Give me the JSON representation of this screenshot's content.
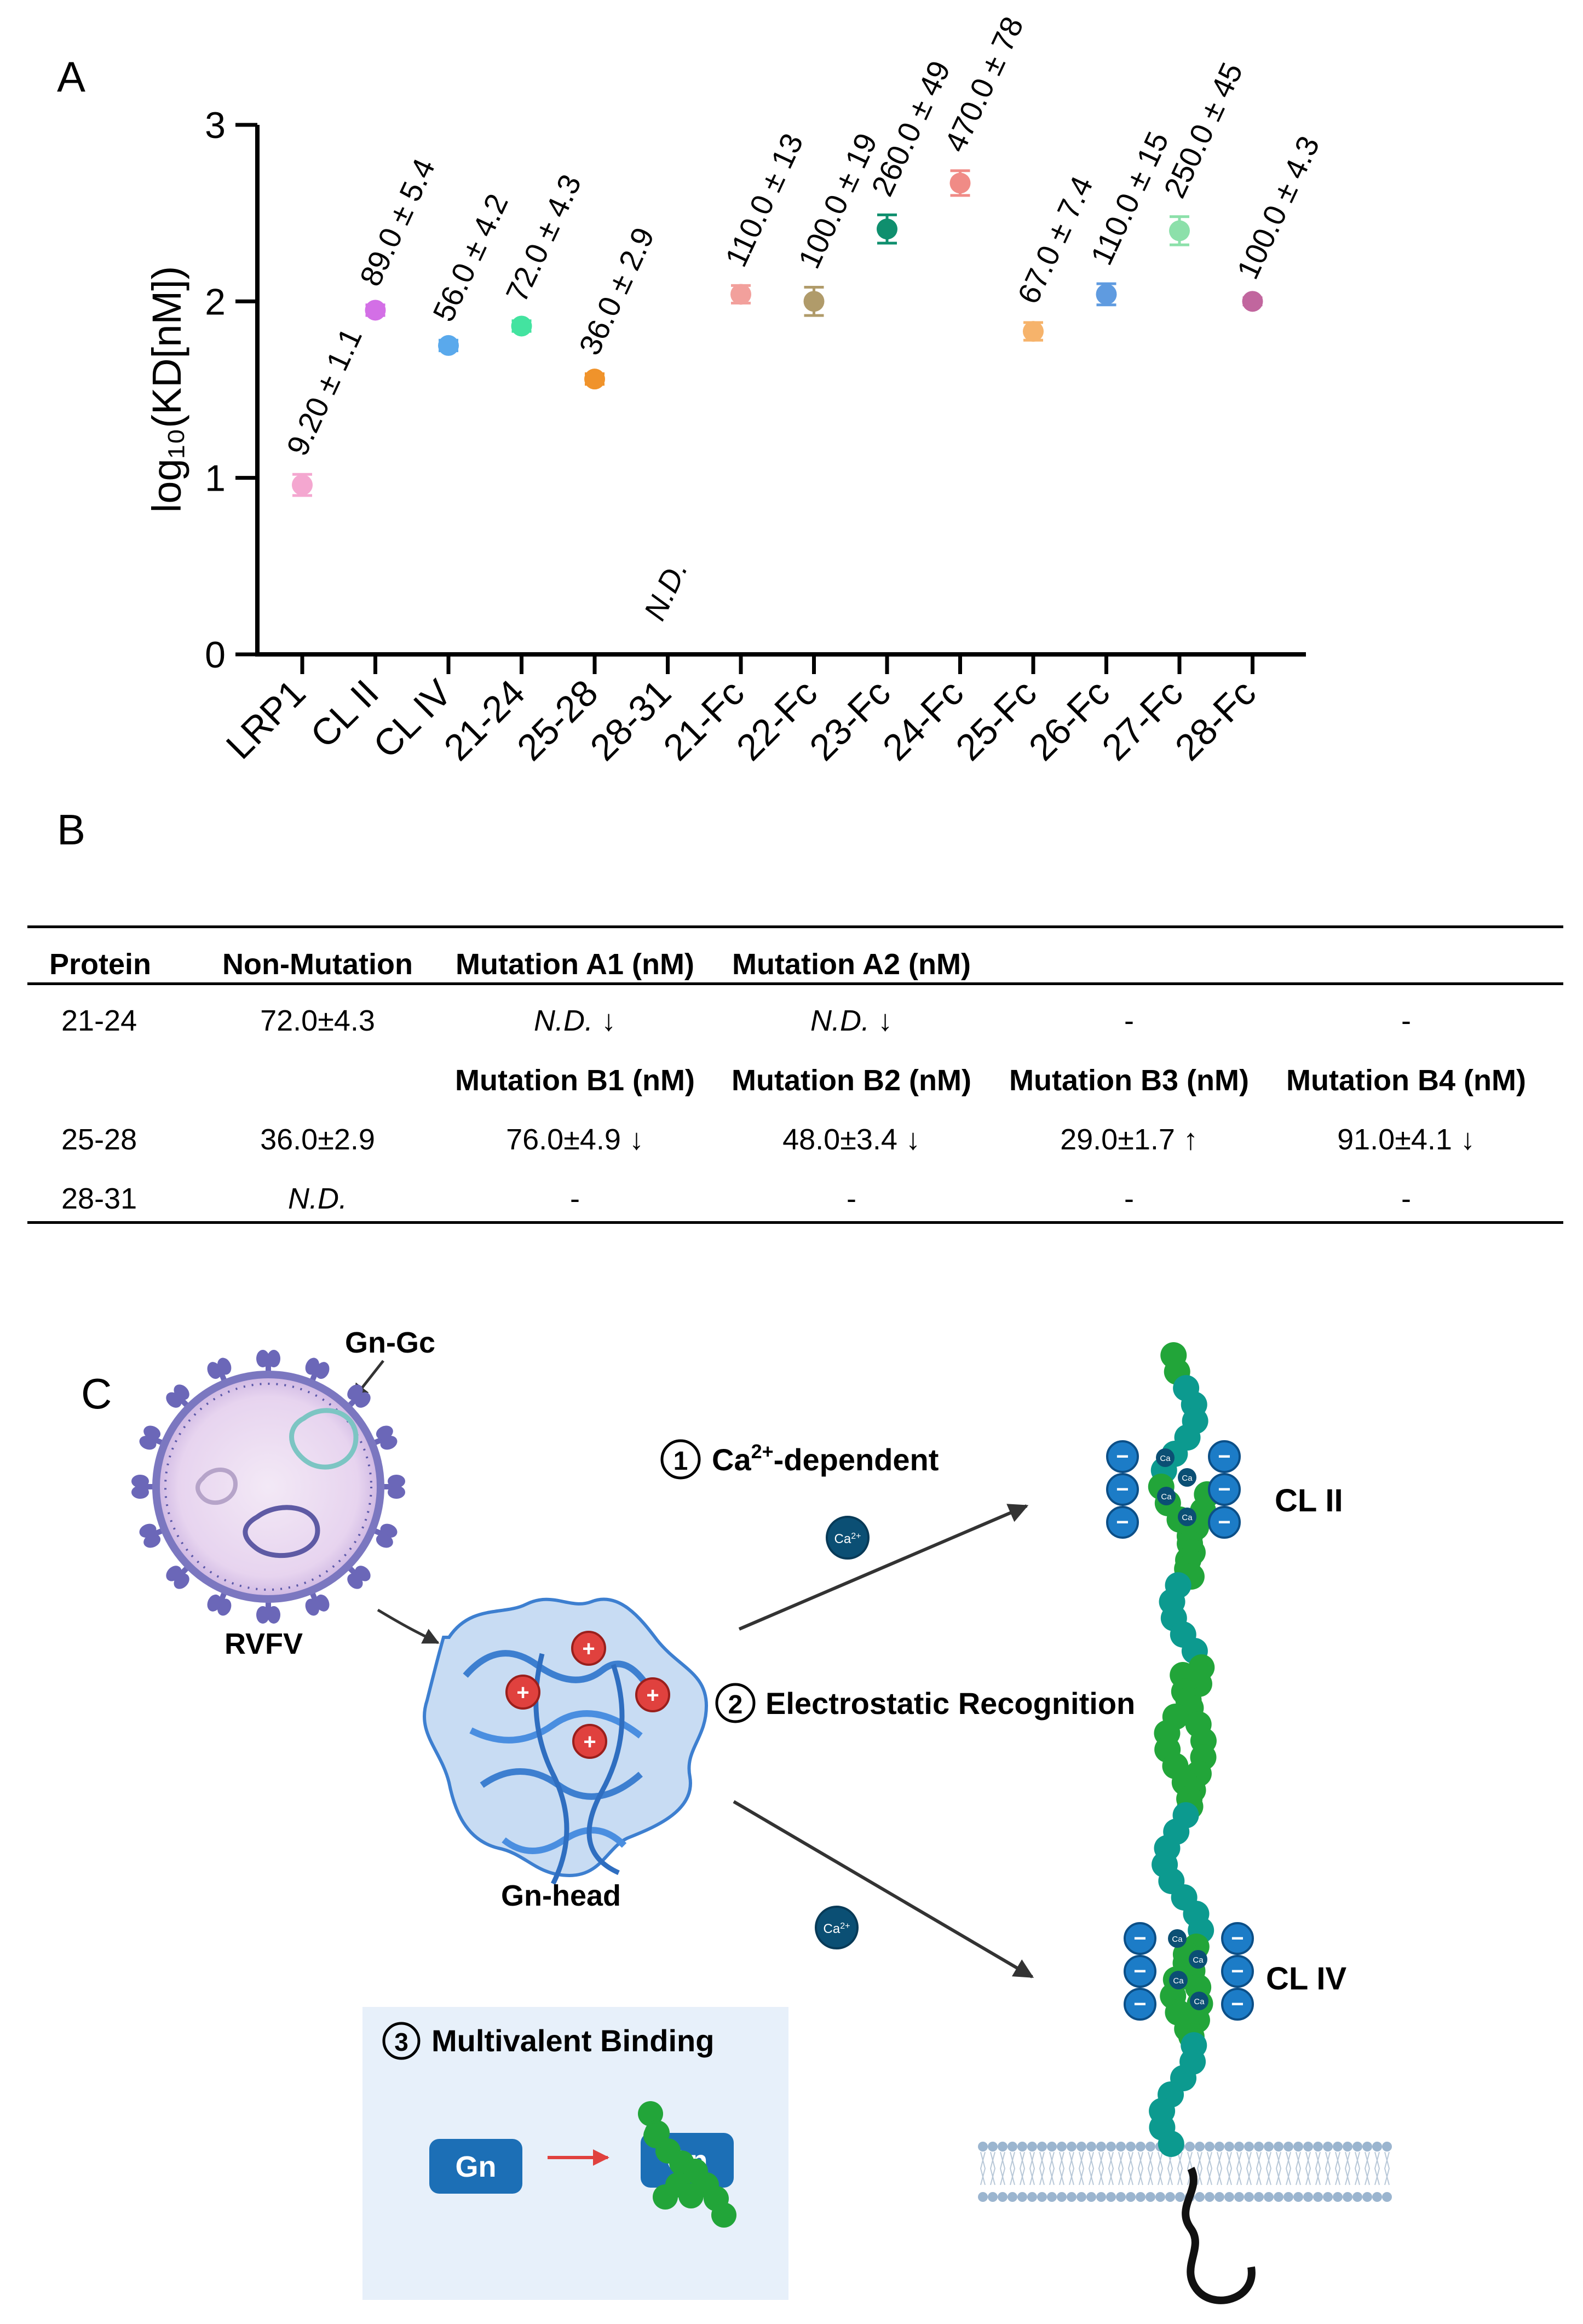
{
  "panels": {
    "a": "A",
    "b": "B",
    "c": "C"
  },
  "colors": {
    "axis": "#000000",
    "points": [
      "#f4a7d0",
      "#d36fe6",
      "#5aa9ec",
      "#43e3a0",
      "#f0932b",
      "#000000",
      "#f2a09c",
      "#b09b6a",
      "#0f8f6e",
      "#f08b86",
      "#f6b36b",
      "#5f9be0",
      "#8ce0aa",
      "#c1669e"
    ],
    "green": "#22a539",
    "teal": "#0c9a8f",
    "minus": "#1c7cc7",
    "plus": "#e0413e",
    "ca": "#0b4f74",
    "gn": "#1c6fb6",
    "virus": "#8a86c8"
  },
  "chart_data": {
    "type": "scatter",
    "title": "",
    "xlabel": "",
    "ylabel": "log₁₀(KD[nM])",
    "ylim": [
      0,
      3
    ],
    "yticks": [
      "0",
      "1",
      "2",
      "3"
    ],
    "categories": [
      "LRP1",
      "CL II",
      "CL IV",
      "21-24",
      "25-28",
      "28-31",
      "21-Fc",
      "22-Fc",
      "23-Fc",
      "24-Fc",
      "25-Fc",
      "26-Fc",
      "27-Fc",
      "28-Fc"
    ],
    "kd_nM": [
      9.2,
      89.0,
      56.0,
      72.0,
      36.0,
      null,
      110.0,
      100.0,
      260.0,
      470.0,
      67.0,
      110.0,
      250.0,
      100.0
    ],
    "values": [
      0.96,
      1.95,
      1.75,
      1.86,
      1.56,
      null,
      2.04,
      2.0,
      2.41,
      2.67,
      1.83,
      2.04,
      2.4,
      2.0
    ],
    "err": [
      0.06,
      0.03,
      0.03,
      0.03,
      0.03,
      null,
      0.05,
      0.08,
      0.08,
      0.07,
      0.05,
      0.06,
      0.08,
      0.02
    ],
    "labels": [
      "9.20 ± 1.1",
      "89.0 ± 5.4",
      "56.0 ± 4.2",
      "72.0 ± 4.3",
      "36.0 ± 2.9",
      "N.D.",
      "110.0 ± 13",
      "100.0 ± 19",
      "260.0 ± 49",
      "470.0 ± 78",
      "67.0 ± 7.4",
      "110.0 ± 15",
      "250.0 ± 45",
      "100.0 ± 4.3"
    ]
  },
  "table": {
    "headers": [
      "Protein",
      "Non-Mutation",
      "Mutation  A1 (nM)",
      "Mutation  A2 (nM)"
    ],
    "row1": [
      "21-24",
      "72.0±4.3",
      "N.D. ↓",
      "N.D. ↓",
      "-",
      "-"
    ],
    "subheaders": [
      "Mutation  B1 (nM)",
      "Mutation  B2 (nM)",
      "Mutation  B3 (nM)",
      "Mutation  B4 (nM)"
    ],
    "row2": [
      "25-28",
      "36.0±2.9",
      "76.0±4.9 ↓",
      "48.0±3.4 ↓",
      "29.0±1.7 ↑",
      "91.0±4.1 ↓"
    ],
    "row3": [
      "28-31",
      "N.D.",
      "-",
      "-",
      "-",
      "-"
    ]
  },
  "diagram": {
    "gn_gc": "Gn-Gc",
    "rvfv": "RVFV",
    "gn_head": "Gn-head",
    "step1_num": "1",
    "step1_a": "Ca",
    "step1_sup": "2+",
    "step1_b": "-dependent",
    "step2_num": "2",
    "step2": "Electrostatic Recognition",
    "step3_num": "3",
    "step3": "Multivalent Binding",
    "ca_label": "Ca",
    "ca_sup": "2+",
    "cl2": "CL II",
    "cl4": "CL IV",
    "gn": "Gn",
    "plus": "+",
    "minus": "−"
  }
}
